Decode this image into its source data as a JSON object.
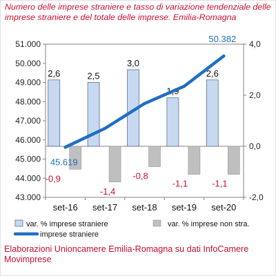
{
  "page": {
    "title": "Numero delle imprese straniere e tasso di variazione tendenziale delle imprese straniere e del totale delle imprese. Emilia-Romagna",
    "source": "Elaborazioni Unioncamere Emilia-Romagna su dati InfoCamere Movimprese"
  },
  "colors": {
    "title_text": "#c8102e",
    "bar_straniere": "#c6d9f1",
    "bar_straniere_border": "#5a6f8f",
    "bar_non_stra": "#bfbfbf",
    "line_imprese": "#1f6fc1",
    "label_positive": "#111111",
    "label_negative": "#c8102e",
    "line_label": "#1f6fc1"
  },
  "chart_data": {
    "type": "bar",
    "title": "Numero delle imprese straniere e tasso di variazione tendenziale delle imprese straniere e del totale delle imprese. Emilia-Romagna",
    "categories": [
      "set-16",
      "set-17",
      "set-18",
      "set-19",
      "set-20"
    ],
    "y_left": {
      "ticks": [
        "43.000",
        "44.000",
        "45.000",
        "46.000",
        "47.000",
        "48.000",
        "49.000",
        "50.000",
        "51.000"
      ],
      "lim": [
        43000,
        51000
      ]
    },
    "y_right": {
      "ticks": [
        "-2,0",
        "0,0",
        "2,0",
        "4,0"
      ],
      "lim": [
        -2.0,
        4.0
      ]
    },
    "series": [
      {
        "name": "var. % imprese straniere",
        "type": "bar",
        "axis": "right",
        "values": [
          2.6,
          2.5,
          3.0,
          1.9,
          2.6
        ],
        "labels": [
          "2,6",
          "2,5",
          "3,0",
          "1,9",
          "2,6"
        ]
      },
      {
        "name": "var. % imprese non stra.",
        "type": "bar",
        "axis": "right",
        "values": [
          -0.9,
          -1.4,
          -0.8,
          -1.1,
          -1.1
        ],
        "labels": [
          "-0,9",
          "-1,4",
          "-0,8",
          "-1,1",
          "-1,1"
        ]
      },
      {
        "name": "imprese straniere",
        "type": "line",
        "axis": "left",
        "values": [
          45619,
          46600,
          47900,
          48800,
          50382
        ],
        "endpoint_labels": [
          "45.619",
          "50.382"
        ]
      }
    ],
    "grid": false,
    "legend": "bottom"
  }
}
